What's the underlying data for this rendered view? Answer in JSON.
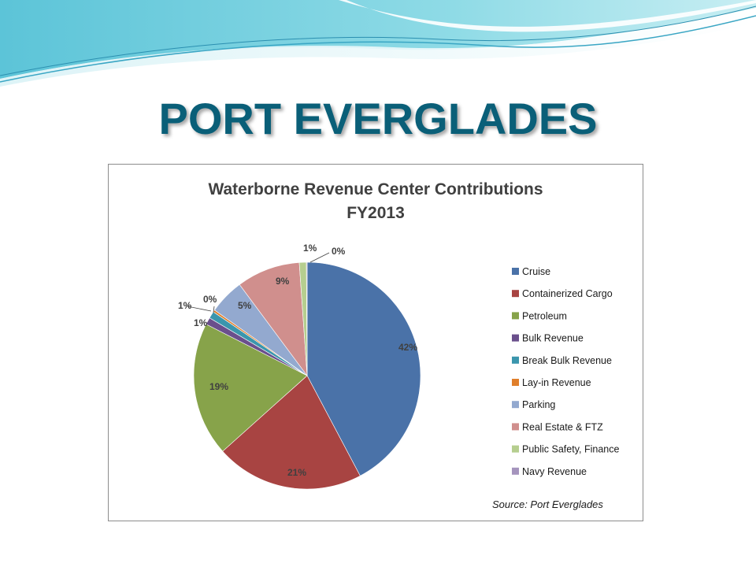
{
  "slide": {
    "title": "PORT EVERGLADES",
    "title_color": "#0a5f78"
  },
  "chart_data": {
    "type": "pie",
    "title": "Waterborne Revenue Center Contributions",
    "subtitle": "FY2013",
    "legend_position": "right",
    "source": "Source: Port Everglades",
    "slices": [
      {
        "name": "Cruise",
        "value": 42,
        "label": "42%",
        "color": "#4a72a8"
      },
      {
        "name": "Containerized Cargo",
        "value": 21,
        "label": "21%",
        "color": "#a84442"
      },
      {
        "name": "Petroleum",
        "value": 19,
        "label": "19%",
        "color": "#87a34a"
      },
      {
        "name": "Bulk Revenue",
        "value": 1,
        "label": "1%",
        "color": "#6a4f8c"
      },
      {
        "name": "Break Bulk Revenue",
        "value": 1,
        "label": "1%",
        "color": "#3b96ad"
      },
      {
        "name": "Lay-in Revenue",
        "value": 0.3,
        "label": "0%",
        "color": "#e07f2b"
      },
      {
        "name": "Parking",
        "value": 5,
        "label": "5%",
        "color": "#93a9cf"
      },
      {
        "name": "Real Estate  & FTZ",
        "value": 9,
        "label": "9%",
        "color": "#d08f8d"
      },
      {
        "name": "Public Safety, Finance",
        "value": 1,
        "label": "1%",
        "color": "#b6ce8f"
      },
      {
        "name": "Navy Revenue",
        "value": 0.1,
        "label": "0%",
        "color": "#a594bd"
      }
    ]
  }
}
